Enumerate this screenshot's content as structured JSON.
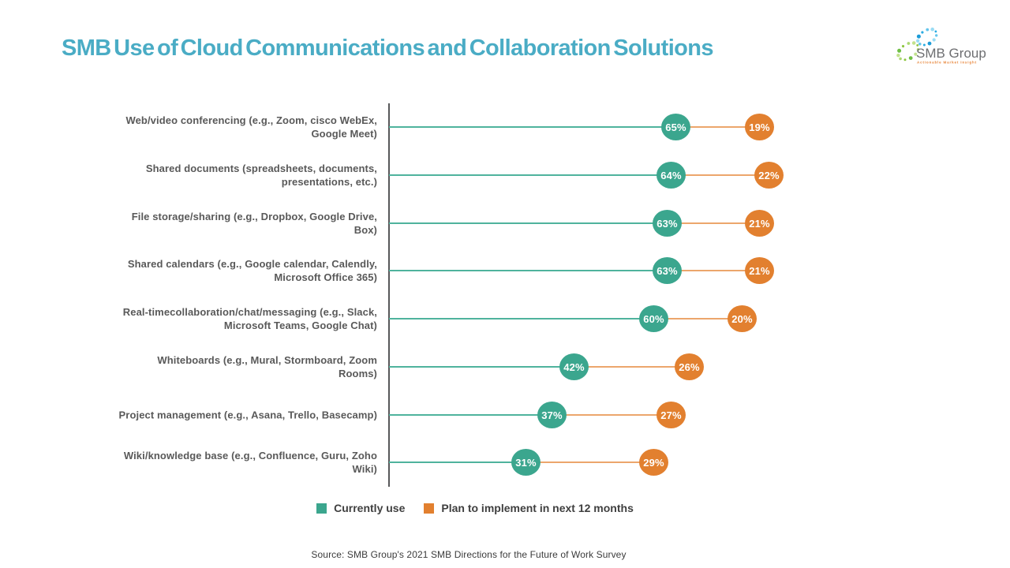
{
  "slide": {
    "title": "SMB Use of Cloud Communications and Collaboration Solutions",
    "source": "Source: SMB Group's 2021 SMB Directions for the Future of Work Survey"
  },
  "logo": {
    "name": "SMB Group",
    "tagline": "Actionable Market Insight"
  },
  "colors": {
    "title_teal_blue": "#4AACC5",
    "teal_dot": "#3BA68E",
    "teal_line": "#4FB39D",
    "orange_dot": "#E2802F",
    "orange_line": "#ECA66C",
    "axis_gray": "#57585A",
    "label_gray": "#595959",
    "legend_text": "#3F3F3F"
  },
  "chart_data": {
    "type": "bar",
    "variant": "horizontal-lollipop",
    "orientation": "horizontal",
    "title": "",
    "xlabel": "",
    "ylabel": "",
    "xlim": [
      0,
      100
    ],
    "value_suffix": "%",
    "grid": false,
    "legend_position": "bottom",
    "second_series_plotted_at_cumulative_value": true,
    "categories": [
      "Web/video conferencing (e.g., Zoom, cisco WebEx, Google Meet)",
      "Shared documents (spreadsheets, documents, presentations, etc.)",
      "File storage/sharing (e.g., Dropbox, Google Drive, Box)",
      "Shared calendars (e.g., Google calendar, Calendly, Microsoft Office 365)",
      "Real-timecollaboration/chat/messaging (e.g., Slack, Microsoft Teams, Google Chat)",
      "Whiteboards (e.g., Mural, Stormboard, Zoom Rooms)",
      "Project management (e.g., Asana, Trello, Basecamp)",
      "Wiki/knowledge base (e.g., Confluence, Guru, Zoho Wiki)"
    ],
    "series": [
      {
        "name": "Currently use",
        "color": "#3BA68E",
        "line_color": "#4FB39D",
        "values": [
          65,
          64,
          63,
          63,
          60,
          42,
          37,
          31
        ]
      },
      {
        "name": "Plan to implement in next 12 months",
        "color": "#E2802F",
        "line_color": "#ECA66C",
        "values": [
          19,
          22,
          21,
          21,
          20,
          26,
          27,
          29
        ]
      }
    ]
  }
}
